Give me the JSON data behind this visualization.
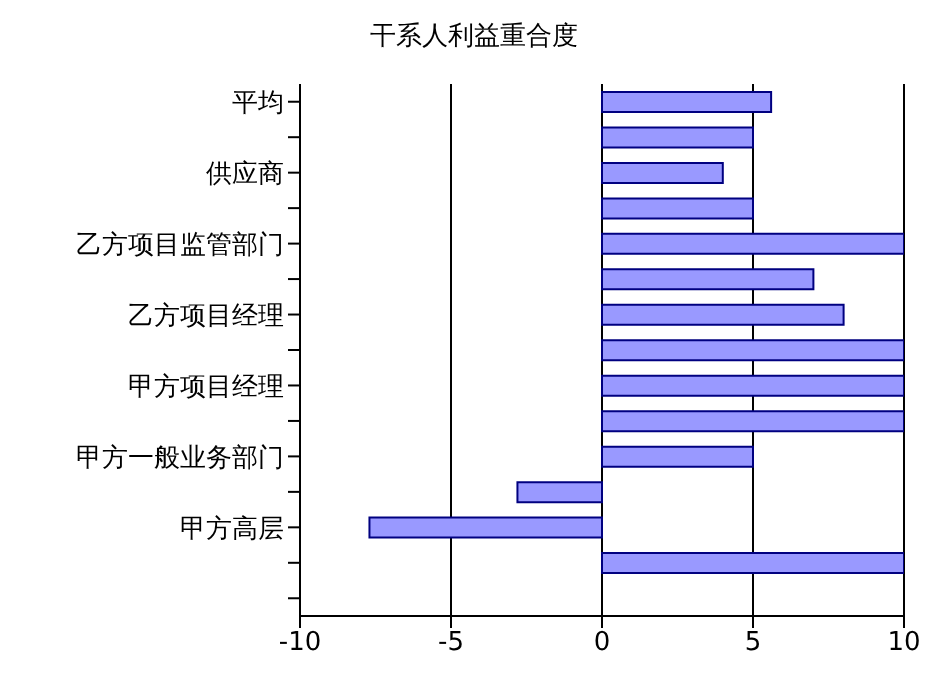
{
  "chart_data": {
    "type": "bar",
    "orientation": "horizontal",
    "title": "干系人利益重合度",
    "categories": [
      "平均",
      null,
      "供应商",
      null,
      "乙方项目监管部门",
      null,
      "乙方项目经理",
      null,
      "甲方项目经理",
      null,
      "甲方一般业务部门",
      null,
      "甲方高层",
      null,
      null
    ],
    "values": [
      5.6,
      5,
      4,
      5,
      10,
      7,
      8,
      10,
      10,
      10,
      5,
      -2.8,
      -7.7,
      10,
      null
    ],
    "color": "#9999ff",
    "xlim": [
      -10,
      10
    ],
    "xticks": [
      -10,
      -5,
      0,
      5,
      10
    ],
    "grid": "x",
    "legend": false
  }
}
